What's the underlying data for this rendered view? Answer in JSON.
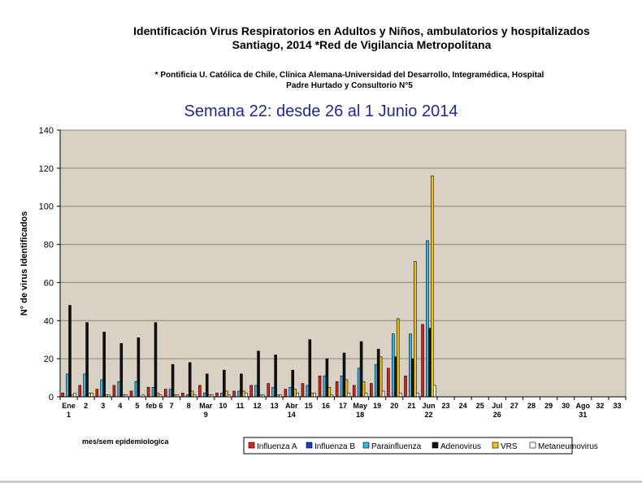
{
  "title_line1": "Identificación  Virus Respiratorios en Adultos y Niños, ambulatorios  y hospitalizados",
  "title_line2": "Santiago, 2014  *Red de Vigilancia  Metropolitana",
  "note_line1": "* Pontificia U. Católica de Chile, Clínica Alemana-Universidad del Desarrollo, Integramédica, Hospital",
  "note_line2": "Padre Hurtado y Consultorio N°5",
  "subtitle": "Semana 22: desde 26 al 1 Junio 2014",
  "colors": {
    "plot_bg": "#d9d2c4",
    "influenza_a": "#e0201b",
    "influenza_b": "#1a3fd0",
    "parainfluenza": "#2fb8ea",
    "adenovirus": "#111111",
    "vrs": "#f4c418",
    "metapneumovirus": "#ffffff"
  },
  "chart_data": {
    "type": "bar",
    "ylabel": "N° de virus Identificados",
    "xlabel": "mes/sem epidemiologica",
    "ylim": [
      0,
      140
    ],
    "yticks": [
      0,
      20,
      40,
      60,
      80,
      100,
      120,
      140
    ],
    "grid": true,
    "legend_position": "bottom-right",
    "weeks": [
      "1",
      "2",
      "3",
      "4",
      "5",
      "6",
      "7",
      "8",
      "9",
      "10",
      "11",
      "12",
      "13",
      "14",
      "15",
      "16",
      "17",
      "18",
      "19",
      "20",
      "21",
      "22",
      "23",
      "24",
      "25",
      "26",
      "27",
      "28",
      "29",
      "30",
      "31",
      "32",
      "33"
    ],
    "tick_labels": [
      {
        "week": 1,
        "line1": "Ene",
        "line2": "1"
      },
      {
        "week": 2,
        "line1": "2",
        "line2": ""
      },
      {
        "week": 3,
        "line1": "3",
        "line2": ""
      },
      {
        "week": 4,
        "line1": "4",
        "line2": ""
      },
      {
        "week": 5,
        "line1": "5",
        "line2": ""
      },
      {
        "week": 6,
        "line1": "feb 6",
        "line2": ""
      },
      {
        "week": 7,
        "line1": "7",
        "line2": ""
      },
      {
        "week": 8,
        "line1": "8",
        "line2": ""
      },
      {
        "week": 9,
        "line1": "Mar",
        "line2": "9"
      },
      {
        "week": 10,
        "line1": "10",
        "line2": ""
      },
      {
        "week": 11,
        "line1": "11",
        "line2": ""
      },
      {
        "week": 12,
        "line1": "12",
        "line2": ""
      },
      {
        "week": 13,
        "line1": "13",
        "line2": ""
      },
      {
        "week": 14,
        "line1": "Abr",
        "line2": "14"
      },
      {
        "week": 15,
        "line1": "15",
        "line2": ""
      },
      {
        "week": 16,
        "line1": "16",
        "line2": ""
      },
      {
        "week": 17,
        "line1": "17",
        "line2": ""
      },
      {
        "week": 18,
        "line1": "May",
        "line2": "18"
      },
      {
        "week": 19,
        "line1": "19",
        "line2": ""
      },
      {
        "week": 20,
        "line1": "20",
        "line2": ""
      },
      {
        "week": 21,
        "line1": "21",
        "line2": ""
      },
      {
        "week": 22,
        "line1": "Jun",
        "line2": "22"
      },
      {
        "week": 23,
        "line1": "23",
        "line2": ""
      },
      {
        "week": 24,
        "line1": "24",
        "line2": ""
      },
      {
        "week": 25,
        "line1": "25",
        "line2": ""
      },
      {
        "week": 26,
        "line1": "Jul",
        "line2": "26"
      },
      {
        "week": 27,
        "line1": "27",
        "line2": ""
      },
      {
        "week": 28,
        "line1": "28",
        "line2": ""
      },
      {
        "week": 29,
        "line1": "29",
        "line2": ""
      },
      {
        "week": 30,
        "line1": "30",
        "line2": ""
      },
      {
        "week": 31,
        "line1": "Ago",
        "line2": "31"
      },
      {
        "week": 32,
        "line1": "32",
        "line2": ""
      },
      {
        "week": 33,
        "line1": "33",
        "line2": ""
      }
    ],
    "series": [
      {
        "name": "Influenza A",
        "color_key": "influenza_a",
        "values": [
          2,
          6,
          4,
          6,
          3,
          5,
          4,
          2,
          6,
          2,
          3,
          6,
          7,
          4,
          7,
          11,
          8,
          6,
          7,
          15,
          11,
          38
        ]
      },
      {
        "name": "Influenza B",
        "color_key": "influenza_b",
        "values": [
          0,
          0,
          0,
          0,
          0,
          0,
          0,
          0,
          0,
          0,
          0,
          0,
          0,
          0,
          0,
          0,
          0,
          0,
          0,
          0,
          0,
          0
        ]
      },
      {
        "name": "Parainfluenza",
        "color_key": "parainfluenza",
        "values": [
          12,
          12,
          9,
          8,
          8,
          5,
          4,
          1,
          2,
          2,
          3,
          6,
          5,
          5,
          6,
          11,
          11,
          15,
          17,
          33,
          33,
          82
        ]
      },
      {
        "name": "Adenovirus",
        "color_key": "adenovirus",
        "values": [
          48,
          39,
          34,
          28,
          31,
          39,
          17,
          18,
          12,
          14,
          12,
          24,
          22,
          14,
          30,
          20,
          23,
          29,
          25,
          21,
          20,
          36
        ]
      },
      {
        "name": "VRS",
        "color_key": "vrs",
        "values": [
          1,
          2,
          1,
          1,
          0,
          2,
          1,
          3,
          1,
          3,
          3,
          1,
          1,
          4,
          2,
          5,
          9,
          8,
          21,
          41,
          71,
          116
        ]
      },
      {
        "name": "Metaneumovirus",
        "color_key": "metapneumovirus",
        "values": [
          2,
          2,
          1,
          1,
          1,
          1,
          1,
          1,
          1,
          1,
          2,
          1,
          1,
          2,
          2,
          1,
          2,
          2,
          3,
          2,
          2,
          6
        ]
      }
    ]
  }
}
